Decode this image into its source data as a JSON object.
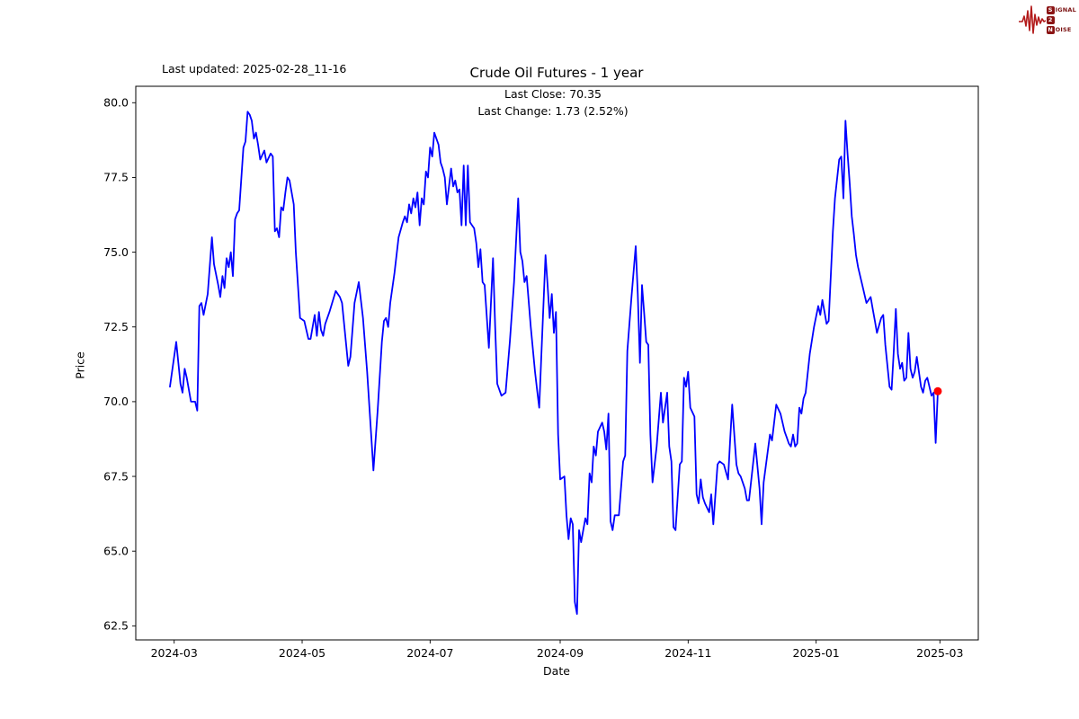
{
  "header": {
    "last_updated": "Last updated: 2025-02-28_11-16"
  },
  "logo": {
    "name": "signal-2-noise",
    "row1_boxed": "S",
    "row1_rest": "IGNAL",
    "row2_boxed": "2",
    "row2_rest": "",
    "row3_boxed": "N",
    "row3_rest": "OISE",
    "waveform_color": "#b31b1b",
    "box_color": "#8b1414"
  },
  "chart": {
    "title": "Crude Oil Futures - 1 year",
    "annotation_line1": "Last Close: 70.35",
    "annotation_line2": "Last Change: 1.73 (2.52%)",
    "xlabel": "Date",
    "ylabel": "Price"
  },
  "chart_data": {
    "type": "line",
    "series_name": "Crude Oil Futures close price",
    "title": "Crude Oil Futures - 1 year",
    "xlabel": "Date",
    "ylabel": "Price",
    "line_color": "#0000ff",
    "last_point_color": "#ff0000",
    "last_close": 70.35,
    "last_change": 1.73,
    "last_change_pct": 2.52,
    "grid": false,
    "legend": "none",
    "start_date": "2024-03-01",
    "x_unit": "days_from_start_date",
    "xlim_days": [
      -18.3,
      383.3
    ],
    "ylim": [
      62.03,
      80.55
    ],
    "x_ticks": [
      {
        "day": 0,
        "label": "2024-03"
      },
      {
        "day": 61,
        "label": "2024-05"
      },
      {
        "day": 122,
        "label": "2024-07"
      },
      {
        "day": 184,
        "label": "2024-09"
      },
      {
        "day": 245,
        "label": "2024-11"
      },
      {
        "day": 306,
        "label": "2025-01"
      },
      {
        "day": 365,
        "label": "2025-03"
      }
    ],
    "y_ticks": [
      {
        "value": 80.0,
        "label": "80.0"
      },
      {
        "value": 77.5,
        "label": "77.5"
      },
      {
        "value": 75.0,
        "label": "75.0"
      },
      {
        "value": 72.5,
        "label": "72.5"
      },
      {
        "value": 70.0,
        "label": "70.0"
      },
      {
        "value": 67.5,
        "label": "67.5"
      },
      {
        "value": 65.0,
        "label": "65.0"
      },
      {
        "value": 62.5,
        "label": "62.5"
      }
    ],
    "points": [
      [
        -2,
        70.5
      ],
      [
        1,
        72.0
      ],
      [
        3,
        70.6
      ],
      [
        4,
        70.3
      ],
      [
        5,
        71.1
      ],
      [
        6,
        70.8
      ],
      [
        8,
        70.0
      ],
      [
        10,
        70.0
      ],
      [
        11,
        69.7
      ],
      [
        12,
        73.2
      ],
      [
        13,
        73.3
      ],
      [
        14,
        72.9
      ],
      [
        16,
        73.6
      ],
      [
        18,
        75.5
      ],
      [
        19,
        74.6
      ],
      [
        21,
        73.9
      ],
      [
        22,
        73.5
      ],
      [
        23,
        74.2
      ],
      [
        24,
        73.8
      ],
      [
        25,
        74.8
      ],
      [
        26,
        74.5
      ],
      [
        27,
        75.0
      ],
      [
        28,
        74.2
      ],
      [
        29,
        76.1
      ],
      [
        30,
        76.3
      ],
      [
        31,
        76.4
      ],
      [
        33,
        78.5
      ],
      [
        34,
        78.7
      ],
      [
        35,
        79.7
      ],
      [
        36,
        79.6
      ],
      [
        37,
        79.4
      ],
      [
        38,
        78.8
      ],
      [
        39,
        79.0
      ],
      [
        40,
        78.6
      ],
      [
        41,
        78.1
      ],
      [
        43,
        78.4
      ],
      [
        44,
        78.0
      ],
      [
        46,
        78.3
      ],
      [
        47,
        78.2
      ],
      [
        48,
        75.7
      ],
      [
        49,
        75.8
      ],
      [
        50,
        75.5
      ],
      [
        51,
        76.5
      ],
      [
        52,
        76.4
      ],
      [
        53,
        77.0
      ],
      [
        54,
        77.5
      ],
      [
        55,
        77.4
      ],
      [
        57,
        76.6
      ],
      [
        58,
        75.0
      ],
      [
        60,
        72.8
      ],
      [
        62,
        72.7
      ],
      [
        64,
        72.1
      ],
      [
        65,
        72.1
      ],
      [
        67,
        72.9
      ],
      [
        68,
        72.2
      ],
      [
        69,
        73.0
      ],
      [
        70,
        72.4
      ],
      [
        71,
        72.2
      ],
      [
        72,
        72.6
      ],
      [
        74,
        73.0
      ],
      [
        77,
        73.7
      ],
      [
        79,
        73.5
      ],
      [
        80,
        73.3
      ],
      [
        83,
        71.2
      ],
      [
        84,
        71.5
      ],
      [
        86,
        73.3
      ],
      [
        88,
        74.0
      ],
      [
        90,
        72.8
      ],
      [
        92,
        71.0
      ],
      [
        94,
        68.8
      ],
      [
        95,
        67.7
      ],
      [
        97,
        69.7
      ],
      [
        99,
        72.0
      ],
      [
        100,
        72.7
      ],
      [
        101,
        72.8
      ],
      [
        102,
        72.5
      ],
      [
        103,
        73.3
      ],
      [
        105,
        74.3
      ],
      [
        107,
        75.5
      ],
      [
        109,
        76.0
      ],
      [
        110,
        76.2
      ],
      [
        111,
        76.0
      ],
      [
        112,
        76.6
      ],
      [
        113,
        76.3
      ],
      [
        114,
        76.8
      ],
      [
        115,
        76.5
      ],
      [
        116,
        77.0
      ],
      [
        117,
        75.9
      ],
      [
        118,
        76.8
      ],
      [
        119,
        76.6
      ],
      [
        120,
        77.7
      ],
      [
        121,
        77.5
      ],
      [
        122,
        78.5
      ],
      [
        123,
        78.2
      ],
      [
        124,
        79.0
      ],
      [
        126,
        78.6
      ],
      [
        127,
        78.0
      ],
      [
        128,
        77.8
      ],
      [
        129,
        77.5
      ],
      [
        130,
        76.6
      ],
      [
        132,
        77.8
      ],
      [
        133,
        77.2
      ],
      [
        134,
        77.4
      ],
      [
        135,
        77.0
      ],
      [
        136,
        77.1
      ],
      [
        137,
        75.9
      ],
      [
        138,
        77.9
      ],
      [
        139,
        75.9
      ],
      [
        140,
        77.9
      ],
      [
        141,
        76.0
      ],
      [
        142,
        75.9
      ],
      [
        143,
        75.8
      ],
      [
        144,
        75.3
      ],
      [
        145,
        74.5
      ],
      [
        146,
        75.1
      ],
      [
        147,
        74.0
      ],
      [
        148,
        73.9
      ],
      [
        150,
        71.8
      ],
      [
        152,
        74.8
      ],
      [
        153,
        72.5
      ],
      [
        154,
        70.6
      ],
      [
        156,
        70.2
      ],
      [
        158,
        70.3
      ],
      [
        160,
        72.0
      ],
      [
        162,
        74.0
      ],
      [
        164,
        76.8
      ],
      [
        165,
        75.0
      ],
      [
        166,
        74.7
      ],
      [
        167,
        74.0
      ],
      [
        168,
        74.2
      ],
      [
        170,
        72.5
      ],
      [
        172,
        71.0
      ],
      [
        173,
        70.4
      ],
      [
        174,
        69.8
      ],
      [
        175,
        71.5
      ],
      [
        177,
        74.9
      ],
      [
        178,
        73.9
      ],
      [
        179,
        72.8
      ],
      [
        180,
        73.6
      ],
      [
        181,
        72.3
      ],
      [
        182,
        73.0
      ],
      [
        183,
        68.9
      ],
      [
        184,
        67.4
      ],
      [
        186,
        67.5
      ],
      [
        187,
        66.2
      ],
      [
        188,
        65.4
      ],
      [
        189,
        66.1
      ],
      [
        190,
        65.9
      ],
      [
        191,
        63.3
      ],
      [
        192,
        62.9
      ],
      [
        193,
        65.7
      ],
      [
        194,
        65.3
      ],
      [
        196,
        66.1
      ],
      [
        197,
        65.9
      ],
      [
        198,
        67.6
      ],
      [
        199,
        67.3
      ],
      [
        200,
        68.5
      ],
      [
        201,
        68.2
      ],
      [
        202,
        69.0
      ],
      [
        204,
        69.3
      ],
      [
        205,
        69.0
      ],
      [
        206,
        68.4
      ],
      [
        207,
        69.6
      ],
      [
        208,
        66.0
      ],
      [
        209,
        65.7
      ],
      [
        210,
        66.2
      ],
      [
        212,
        66.2
      ],
      [
        214,
        68.0
      ],
      [
        215,
        68.2
      ],
      [
        216,
        71.7
      ],
      [
        218,
        73.5
      ],
      [
        220,
        75.2
      ],
      [
        221,
        73.6
      ],
      [
        222,
        71.3
      ],
      [
        223,
        73.9
      ],
      [
        224,
        73.0
      ],
      [
        225,
        72.0
      ],
      [
        226,
        71.9
      ],
      [
        227,
        68.9
      ],
      [
        228,
        67.3
      ],
      [
        230,
        68.5
      ],
      [
        232,
        70.3
      ],
      [
        233,
        69.3
      ],
      [
        235,
        70.3
      ],
      [
        236,
        68.5
      ],
      [
        237,
        68.0
      ],
      [
        238,
        65.8
      ],
      [
        239,
        65.7
      ],
      [
        241,
        67.9
      ],
      [
        242,
        68.0
      ],
      [
        243,
        70.8
      ],
      [
        244,
        70.5
      ],
      [
        245,
        71.0
      ],
      [
        246,
        69.8
      ],
      [
        248,
        69.5
      ],
      [
        249,
        66.9
      ],
      [
        250,
        66.6
      ],
      [
        251,
        67.4
      ],
      [
        252,
        66.8
      ],
      [
        253,
        66.6
      ],
      [
        255,
        66.3
      ],
      [
        256,
        66.9
      ],
      [
        257,
        65.9
      ],
      [
        259,
        67.9
      ],
      [
        260,
        68.0
      ],
      [
        262,
        67.9
      ],
      [
        264,
        67.4
      ],
      [
        265,
        68.7
      ],
      [
        266,
        69.9
      ],
      [
        268,
        67.9
      ],
      [
        269,
        67.6
      ],
      [
        270,
        67.5
      ],
      [
        271,
        67.3
      ],
      [
        272,
        67.1
      ],
      [
        273,
        66.7
      ],
      [
        274,
        66.7
      ],
      [
        277,
        68.6
      ],
      [
        279,
        67.1
      ],
      [
        280,
        65.9
      ],
      [
        281,
        67.3
      ],
      [
        284,
        68.9
      ],
      [
        285,
        68.7
      ],
      [
        287,
        69.9
      ],
      [
        289,
        69.6
      ],
      [
        290,
        69.3
      ],
      [
        291,
        69.0
      ],
      [
        292,
        68.8
      ],
      [
        293,
        68.6
      ],
      [
        294,
        68.5
      ],
      [
        295,
        68.9
      ],
      [
        296,
        68.5
      ],
      [
        297,
        68.6
      ],
      [
        298,
        69.8
      ],
      [
        299,
        69.6
      ],
      [
        300,
        70.1
      ],
      [
        301,
        70.3
      ],
      [
        303,
        71.6
      ],
      [
        305,
        72.5
      ],
      [
        307,
        73.2
      ],
      [
        308,
        72.9
      ],
      [
        309,
        73.4
      ],
      [
        310,
        73.0
      ],
      [
        311,
        72.6
      ],
      [
        312,
        72.7
      ],
      [
        314,
        75.7
      ],
      [
        315,
        76.8
      ],
      [
        317,
        78.1
      ],
      [
        318,
        78.2
      ],
      [
        319,
        76.8
      ],
      [
        320,
        79.4
      ],
      [
        321,
        78.3
      ],
      [
        322,
        77.3
      ],
      [
        323,
        76.2
      ],
      [
        324,
        75.6
      ],
      [
        325,
        74.9
      ],
      [
        326,
        74.5
      ],
      [
        328,
        73.9
      ],
      [
        330,
        73.3
      ],
      [
        332,
        73.5
      ],
      [
        333,
        73.1
      ],
      [
        334,
        72.7
      ],
      [
        335,
        72.3
      ],
      [
        337,
        72.8
      ],
      [
        338,
        72.9
      ],
      [
        339,
        71.9
      ],
      [
        341,
        70.5
      ],
      [
        342,
        70.4
      ],
      [
        343,
        71.7
      ],
      [
        344,
        73.1
      ],
      [
        345,
        71.6
      ],
      [
        346,
        71.1
      ],
      [
        347,
        71.3
      ],
      [
        348,
        70.7
      ],
      [
        349,
        70.8
      ],
      [
        350,
        72.3
      ],
      [
        351,
        71.1
      ],
      [
        352,
        70.8
      ],
      [
        353,
        71.0
      ],
      [
        354,
        71.5
      ],
      [
        356,
        70.5
      ],
      [
        357,
        70.3
      ],
      [
        358,
        70.7
      ],
      [
        359,
        70.8
      ],
      [
        361,
        70.2
      ],
      [
        362,
        70.3
      ],
      [
        363,
        68.62
      ],
      [
        364,
        70.35
      ]
    ]
  }
}
